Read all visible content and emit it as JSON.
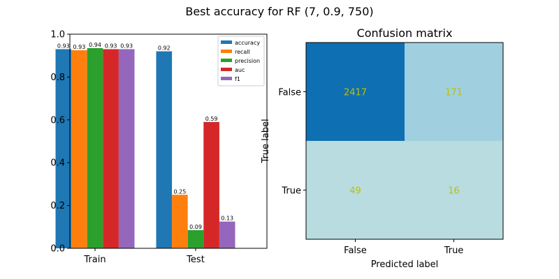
{
  "figure": {
    "suptitle": "Best accuracy for RF (7, 0.9, 750)"
  },
  "chart_data": [
    {
      "type": "bar",
      "title": "",
      "xlabel": "",
      "ylabel": "",
      "categories": [
        "Train",
        "Test"
      ],
      "ylim": [
        0,
        1.0
      ],
      "yticks": [
        "0.0",
        "0.2",
        "0.4",
        "0.6",
        "0.8",
        "1.0"
      ],
      "legend_position": "upper-right",
      "series": [
        {
          "name": "accuracy",
          "color": "#1f77b4",
          "values": [
            0.93,
            0.92
          ],
          "labels": [
            "0.93",
            "0.92"
          ]
        },
        {
          "name": "recall",
          "color": "#ff7f0e",
          "values": [
            0.925,
            0.25
          ],
          "labels": [
            "0.93",
            "0.25"
          ]
        },
        {
          "name": "precision",
          "color": "#2ca02c",
          "values": [
            0.935,
            0.085
          ],
          "labels": [
            "0.94",
            "0.09"
          ]
        },
        {
          "name": "auc",
          "color": "#d62728",
          "values": [
            0.93,
            0.59
          ],
          "labels": [
            "0.93",
            "0.59"
          ]
        },
        {
          "name": "f1",
          "color": "#9467bd",
          "values": [
            0.93,
            0.125
          ],
          "labels": [
            "0.93",
            "0.13"
          ]
        }
      ]
    },
    {
      "type": "heatmap",
      "title": "Confusion matrix",
      "xlabel": "Predicted label",
      "ylabel": "True label",
      "x_categories": [
        "False",
        "True"
      ],
      "y_categories": [
        "False",
        "True"
      ],
      "values": [
        [
          2417,
          171
        ],
        [
          49,
          16
        ]
      ],
      "cell_colors": [
        [
          "#0f6fb3",
          "#a0d0e0"
        ],
        [
          "#b8dcdf",
          "#b8dcdf"
        ]
      ]
    }
  ]
}
